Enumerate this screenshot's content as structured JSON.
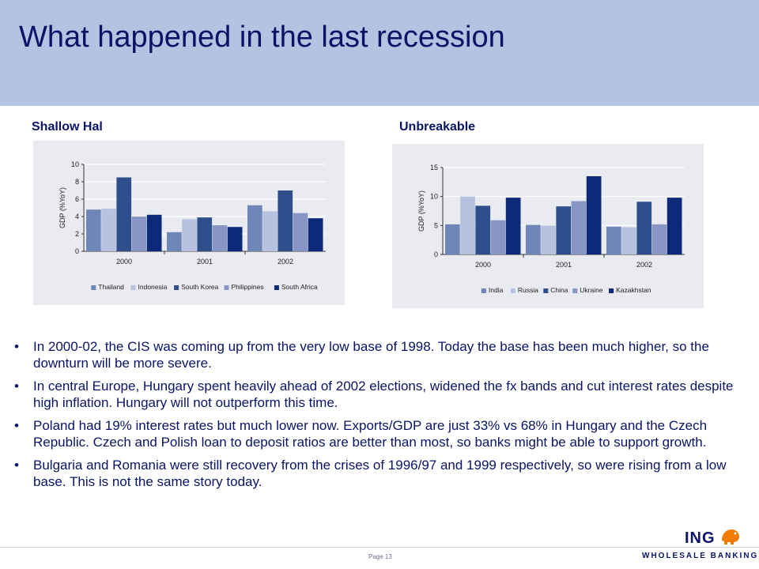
{
  "slide": {
    "title": "What happened in the last recession",
    "page_number": "Page 13"
  },
  "brand": {
    "logo_text": "ING",
    "tagline": "WHOLESALE BANKING",
    "colors": {
      "header_band": "#b3c3e1",
      "title_text": "#0a1466",
      "logo_orange": "#f07c00"
    }
  },
  "charts": {
    "left_heading": "Shallow Hal",
    "right_heading": "Unbreakable"
  },
  "chart_data": [
    {
      "type": "bar",
      "categories": [
        "2000",
        "2001",
        "2002"
      ],
      "series": [
        {
          "name": "Thailand",
          "values": [
            4.8,
            2.2,
            5.3
          ],
          "color": "#6f86b8"
        },
        {
          "name": "Indonesia",
          "values": [
            4.9,
            3.7,
            4.6
          ],
          "color": "#b6c2de"
        },
        {
          "name": "South Korea",
          "values": [
            8.5,
            3.9,
            7.0
          ],
          "color": "#2f4e8c"
        },
        {
          "name": "Philippines",
          "values": [
            4.0,
            3.0,
            4.4
          ],
          "color": "#8796c5"
        },
        {
          "name": "South Africa",
          "values": [
            4.2,
            2.8,
            3.8
          ],
          "color": "#0d2a78"
        }
      ],
      "xlabel": "",
      "ylabel": "GDP (%YoY)",
      "ylim": [
        0,
        10
      ],
      "yticks": [
        0,
        2,
        4,
        6,
        8,
        10
      ],
      "grid": true,
      "legend_position": "bottom"
    },
    {
      "type": "bar",
      "categories": [
        "2000",
        "2001",
        "2002"
      ],
      "series": [
        {
          "name": "India",
          "values": [
            5.2,
            5.1,
            4.8
          ],
          "color": "#6f86b8"
        },
        {
          "name": "Russia",
          "values": [
            10.0,
            5.0,
            4.7
          ],
          "color": "#b6c2de"
        },
        {
          "name": "China",
          "values": [
            8.4,
            8.3,
            9.1
          ],
          "color": "#2f4e8c"
        },
        {
          "name": "Ukraine",
          "values": [
            5.9,
            9.2,
            5.2
          ],
          "color": "#8796c5"
        },
        {
          "name": "Kazakhstan",
          "values": [
            9.8,
            13.5,
            9.8
          ],
          "color": "#0d2a78"
        }
      ],
      "xlabel": "",
      "ylabel": "GDP (%YoY)",
      "ylim": [
        0,
        15
      ],
      "yticks": [
        0,
        5,
        10,
        15
      ],
      "grid": true,
      "legend_position": "bottom"
    }
  ],
  "bullets": [
    "In 2000-02, the CIS was coming up from the very low base of 1998. Today the base has been much higher, so the downturn will be more severe.",
    "In central Europe, Hungary spent heavily ahead of 2002 elections, widened the fx bands and cut interest rates despite high inflation. Hungary will not outperform this time.",
    "Poland had 19% interest rates but much lower now. Exports/GDP are just 33% vs 68% in Hungary and the Czech Republic. Czech and Polish loan to deposit ratios are better than most, so banks might be able to support growth.",
    "Bulgaria and Romania were still recovery from the crises of 1996/97 and 1999 respectively, so were rising from a low base. This is not the same story today."
  ],
  "bullet_symbol": "•"
}
